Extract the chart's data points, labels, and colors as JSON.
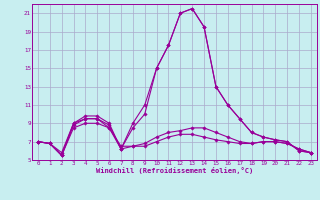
{
  "xlabel": "Windchill (Refroidissement éolien,°C)",
  "bg_color": "#c8eef0",
  "grid_color": "#aaaacc",
  "line_color": "#990099",
  "xlim": [
    -0.5,
    23.5
  ],
  "ylim": [
    5,
    22
  ],
  "xticks": [
    0,
    1,
    2,
    3,
    4,
    5,
    6,
    7,
    8,
    9,
    10,
    11,
    12,
    13,
    14,
    15,
    16,
    17,
    18,
    19,
    20,
    21,
    22,
    23
  ],
  "yticks": [
    5,
    7,
    9,
    11,
    13,
    15,
    17,
    19,
    21
  ],
  "series": [
    [
      7.0,
      6.8,
      5.5,
      9.0,
      9.8,
      9.8,
      9.0,
      6.2,
      9.0,
      11.0,
      15.0,
      17.5,
      21.0,
      21.5,
      19.5,
      13.0,
      11.0,
      9.5,
      8.0,
      7.5,
      7.2,
      7.0,
      6.0,
      5.8
    ],
    [
      7.0,
      6.8,
      5.5,
      8.8,
      9.5,
      9.5,
      8.8,
      6.2,
      8.5,
      10.0,
      15.0,
      17.5,
      21.0,
      21.5,
      19.5,
      13.0,
      11.0,
      9.5,
      8.0,
      7.5,
      7.2,
      7.0,
      6.0,
      5.8
    ],
    [
      7.0,
      6.8,
      5.8,
      9.0,
      9.5,
      9.5,
      8.5,
      6.5,
      6.5,
      6.8,
      7.5,
      8.0,
      8.2,
      8.5,
      8.5,
      8.0,
      7.5,
      7.0,
      6.8,
      7.0,
      7.0,
      6.8,
      6.2,
      5.8
    ],
    [
      7.0,
      6.8,
      5.5,
      8.5,
      9.0,
      9.0,
      8.5,
      6.2,
      6.5,
      6.5,
      7.0,
      7.5,
      7.8,
      7.8,
      7.5,
      7.2,
      7.0,
      6.8,
      6.8,
      7.0,
      7.0,
      6.8,
      6.2,
      5.8
    ]
  ],
  "title_fontsize": 5.5,
  "tick_fontsize": 4.2,
  "xlabel_fontsize": 5.0,
  "marker_size": 1.8,
  "line_width": 0.8
}
